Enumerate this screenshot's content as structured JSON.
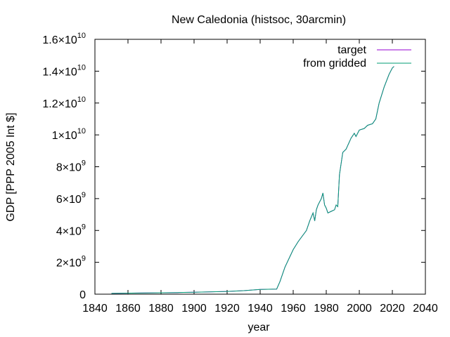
{
  "chart_data": {
    "type": "line",
    "title": "New Caledonia (histsoc, 30arcmin)",
    "xlabel": "year",
    "ylabel": "GDP [PPP 2005 Int $]",
    "xlim": [
      1840,
      2040
    ],
    "ylim": [
      0,
      16000000000
    ],
    "xticks": [
      {
        "value": 1840,
        "label": "1840"
      },
      {
        "value": 1860,
        "label": "1860"
      },
      {
        "value": 1880,
        "label": "1880"
      },
      {
        "value": 1900,
        "label": "1900"
      },
      {
        "value": 1920,
        "label": "1920"
      },
      {
        "value": 1940,
        "label": "1940"
      },
      {
        "value": 1960,
        "label": "1960"
      },
      {
        "value": 1980,
        "label": "1980"
      },
      {
        "value": 2000,
        "label": "2000"
      },
      {
        "value": 2020,
        "label": "2020"
      },
      {
        "value": 2040,
        "label": "2040"
      }
    ],
    "yticks": [
      {
        "value": 0,
        "mant": "0",
        "exp": ""
      },
      {
        "value": 2000000000,
        "mant": "2×10",
        "exp": "9"
      },
      {
        "value": 4000000000,
        "mant": "4×10",
        "exp": "9"
      },
      {
        "value": 6000000000,
        "mant": "6×10",
        "exp": "9"
      },
      {
        "value": 8000000000,
        "mant": "8×10",
        "exp": "9"
      },
      {
        "value": 10000000000,
        "mant": "1×10",
        "exp": "10"
      },
      {
        "value": 12000000000,
        "mant": "1.2×10",
        "exp": "10"
      },
      {
        "value": 14000000000,
        "mant": "1.4×10",
        "exp": "10"
      },
      {
        "value": 16000000000,
        "mant": "1.6×10",
        "exp": "10"
      }
    ],
    "legend_position": "top-right",
    "series": [
      {
        "name": "target",
        "color": "#9400d3",
        "x": [
          1850,
          1870,
          1890,
          1900,
          1920,
          1930,
          1940,
          1950,
          1952,
          1955,
          1960,
          1963,
          1968,
          1970,
          1972,
          1973,
          1974,
          1975,
          1977,
          1978,
          1979,
          1980,
          1981,
          1983,
          1985,
          1986,
          1987,
          1988,
          1990,
          1992,
          1995,
          1997,
          1998,
          2000,
          2003,
          2005,
          2008,
          2010,
          2012,
          2015,
          2018,
          2020,
          2021
        ],
        "y": [
          50000000,
          80000000,
          100000000,
          120000000,
          170000000,
          220000000,
          300000000,
          320000000,
          800000000,
          1700000000,
          2800000000,
          3300000000,
          4000000000,
          4600000000,
          5100000000,
          4600000000,
          5300000000,
          5600000000,
          6000000000,
          6350000000,
          5600000000,
          5400000000,
          5100000000,
          5200000000,
          5300000000,
          5600000000,
          5500000000,
          7500000000,
          8900000000,
          9100000000,
          9800000000,
          10100000000,
          9900000000,
          10300000000,
          10400000000,
          10600000000,
          10700000000,
          11000000000,
          12000000000,
          13000000000,
          13800000000,
          14200000000,
          14300000000
        ]
      },
      {
        "name": "from gridded",
        "color": "#009e73",
        "x": [
          1850,
          1870,
          1890,
          1900,
          1920,
          1930,
          1940,
          1950,
          1952,
          1955,
          1960,
          1963,
          1968,
          1970,
          1972,
          1973,
          1974,
          1975,
          1977,
          1978,
          1979,
          1980,
          1981,
          1983,
          1985,
          1986,
          1987,
          1988,
          1990,
          1992,
          1995,
          1997,
          1998,
          2000,
          2003,
          2005,
          2008,
          2010,
          2012,
          2015,
          2018,
          2020,
          2021
        ],
        "y": [
          50000000,
          80000000,
          100000000,
          120000000,
          170000000,
          220000000,
          300000000,
          320000000,
          800000000,
          1700000000,
          2800000000,
          3300000000,
          4000000000,
          4600000000,
          5100000000,
          4600000000,
          5300000000,
          5600000000,
          6000000000,
          6350000000,
          5600000000,
          5400000000,
          5100000000,
          5200000000,
          5300000000,
          5600000000,
          5500000000,
          7500000000,
          8900000000,
          9100000000,
          9800000000,
          10100000000,
          9900000000,
          10300000000,
          10400000000,
          10600000000,
          10700000000,
          11000000000,
          12000000000,
          13000000000,
          13800000000,
          14200000000,
          14300000000
        ]
      }
    ]
  }
}
